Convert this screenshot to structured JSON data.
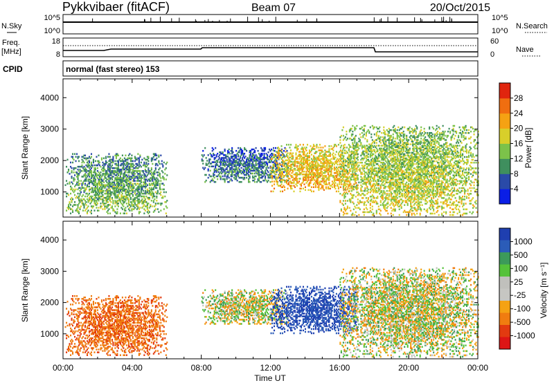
{
  "header": {
    "station": "Pykkvibaer (fitACF)",
    "beam": "Beam 07",
    "date": "20/Oct/2015"
  },
  "strip_panels": {
    "nsky": {
      "label": "N.Sky",
      "right_label": "N.Search",
      "ticks_left": [
        "10^5",
        "10^0"
      ],
      "ticks_right": [
        "10^5",
        "10^0"
      ]
    },
    "freq": {
      "label_top": "Freq.",
      "label_bottom": "[MHz]",
      "right_label": "Nave",
      "ticks_left": [
        "18",
        "8"
      ],
      "ticks_right": [
        "60",
        "0"
      ]
    },
    "cpid": {
      "label": "CPID",
      "mode": "normal (fast stereo) 153"
    }
  },
  "colors": {
    "power_scale": [
      "#0a1ee6",
      "#2a4aa8",
      "#3f8f5e",
      "#7cc24a",
      "#d8cf2a",
      "#f5a213",
      "#f06e10",
      "#e0250e"
    ],
    "velocity_scale": [
      "#1f3fb0",
      "#2b5cb8",
      "#3c9a5a",
      "#55c23a",
      "#c0c0bc",
      "#c6c6c2",
      "#f5a213",
      "#f07c10",
      "#e23a10",
      "#dd1515"
    ],
    "frame": "#000000"
  },
  "chart_data": [
    {
      "type": "heatmap",
      "quantity": "Power",
      "ylabel": "Slant Range [km]",
      "ylim": [
        200,
        4600
      ],
      "yticks": [
        "1000",
        "2000",
        "3000",
        "4000"
      ],
      "xlim_hours": [
        0,
        24
      ],
      "colorbar_label": "Power [dB]",
      "colorbar_ticks": [
        "28",
        "24",
        "20",
        "16",
        "12",
        "8",
        "4"
      ],
      "colorbar_range": [
        0,
        32
      ],
      "echo_regions": [
        {
          "t_start": 0.1,
          "t_end": 6.0,
          "range_min": 300,
          "range_max": 2200,
          "typical_db": 14
        },
        {
          "t_start": 8.0,
          "t_end": 13.0,
          "range_min": 1300,
          "range_max": 2400,
          "typical_db": 10
        },
        {
          "t_start": 12.0,
          "t_end": 17.0,
          "range_min": 1000,
          "range_max": 2500,
          "typical_db": 22
        },
        {
          "t_start": 16.0,
          "t_end": 24.0,
          "range_min": 250,
          "range_max": 3100,
          "typical_db": 18
        }
      ]
    },
    {
      "type": "heatmap",
      "quantity": "Velocity",
      "ylabel": "Slant Range [km]",
      "xlabel": "Time UT",
      "ylim": [
        200,
        4600
      ],
      "yticks": [
        "1000",
        "2000",
        "3000",
        "4000"
      ],
      "xticks": [
        "00:00",
        "04:00",
        "08:00",
        "12:00",
        "16:00",
        "20:00",
        "00:00"
      ],
      "xlim_hours": [
        0,
        24
      ],
      "colorbar_label": "Velocity [m s⁻¹]",
      "colorbar_ticks": [
        "1000",
        "500",
        "100",
        "25",
        "-25",
        "-100",
        "-500",
        "-1000"
      ],
      "echo_regions": [
        {
          "t_start": 0.1,
          "t_end": 6.0,
          "range_min": 300,
          "range_max": 2200,
          "typical_velocity": -300
        },
        {
          "t_start": 8.0,
          "t_end": 13.0,
          "range_min": 1300,
          "range_max": 2400,
          "typical_velocity": 0
        },
        {
          "t_start": 13.0,
          "t_end": 16.5,
          "range_min": 1200,
          "range_max": 2200,
          "typical_velocity": 700
        },
        {
          "t_start": 16.5,
          "t_end": 24.0,
          "range_min": 300,
          "range_max": 3100,
          "typical_velocity": 0
        }
      ]
    }
  ]
}
